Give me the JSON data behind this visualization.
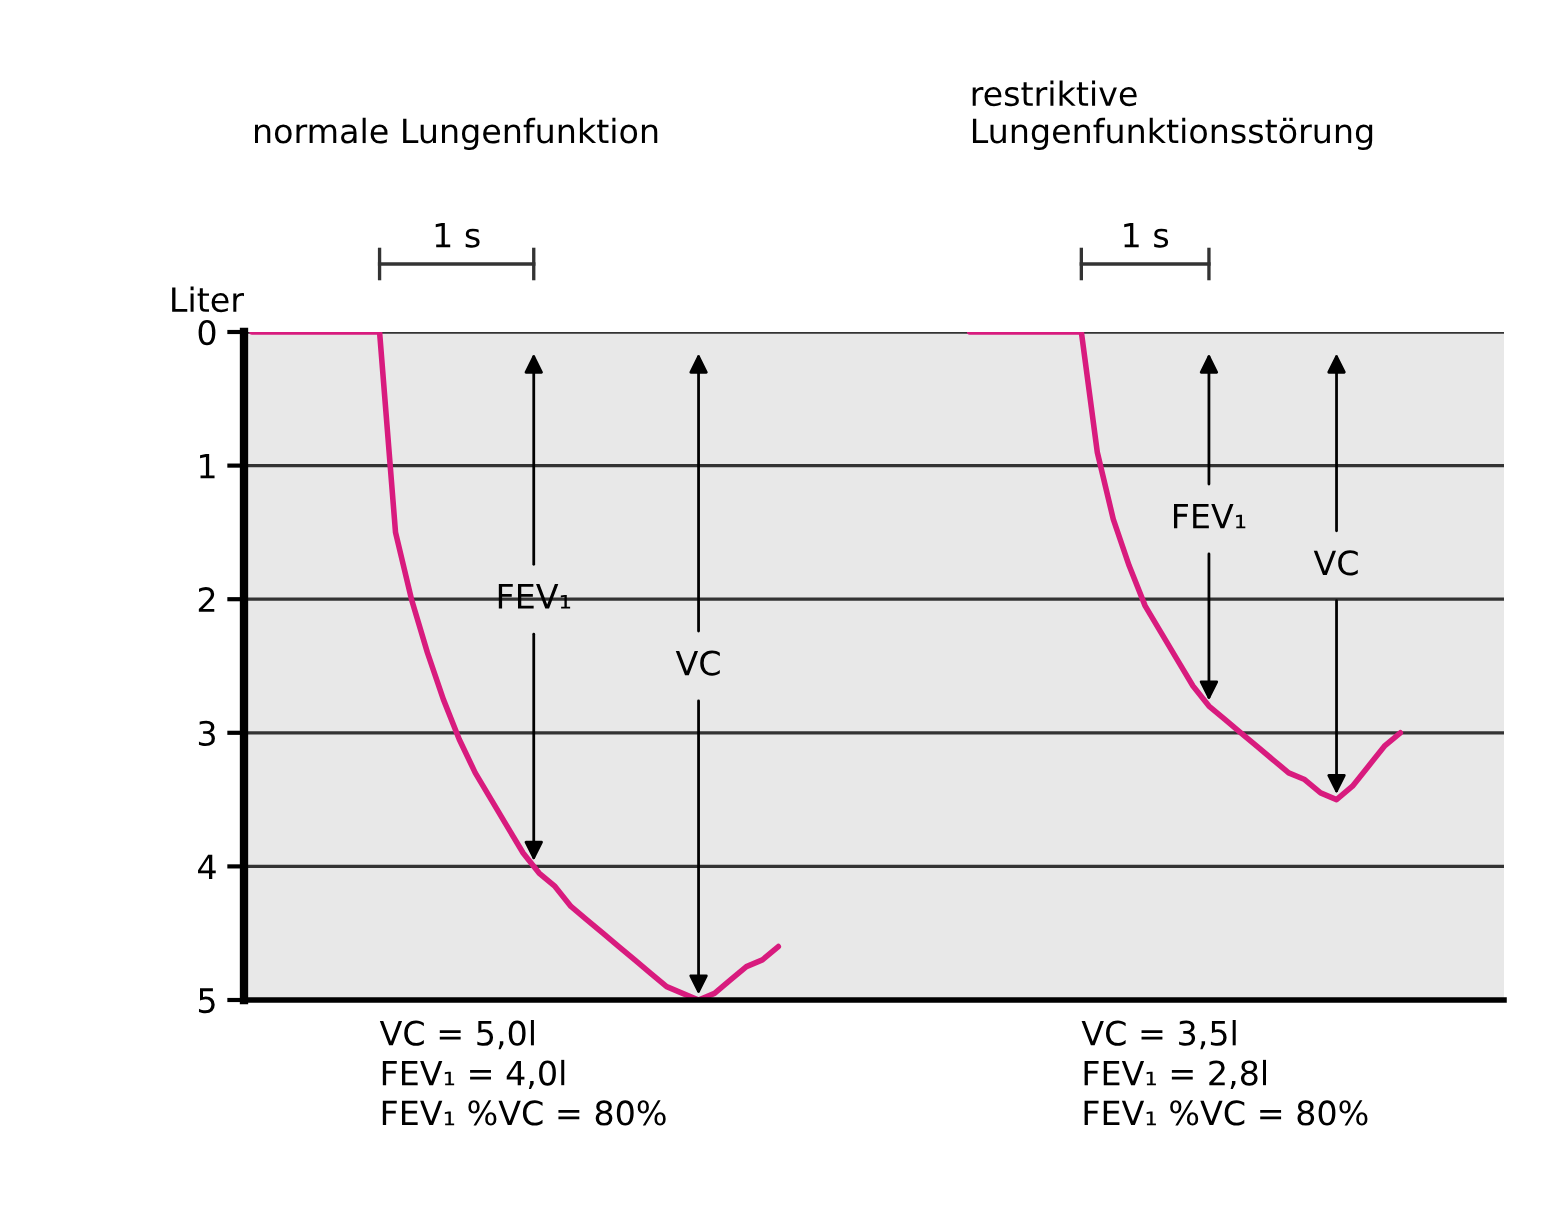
{
  "chart_data": {
    "type": "line",
    "ylabel": "Liter",
    "categories": [
      null,
      null,
      null,
      null,
      null,
      null,
      null,
      null,
      null,
      null,
      null,
      null,
      null,
      null,
      null,
      null,
      null,
      null,
      null,
      null,
      null,
      null,
      null,
      null,
      null,
      null,
      null,
      null,
      null,
      null,
      null,
      null,
      null,
      null,
      null,
      null,
      null,
      null,
      null,
      null,
      null,
      null,
      null,
      null,
      null,
      null,
      null,
      null,
      null,
      null,
      null,
      null,
      null,
      null,
      null,
      null,
      null,
      null,
      null,
      null,
      null,
      null,
      null,
      null,
      null,
      null,
      null,
      null,
      null,
      null,
      null,
      null,
      null,
      null,
      null,
      null,
      null,
      null,
      null
    ],
    "series": [
      {
        "color": "#d81b7e",
        "values": [
          0,
          0,
          0,
          0,
          0,
          0,
          0,
          0,
          0,
          1.5,
          2.0,
          2.4,
          2.75,
          3.05,
          3.3,
          3.5,
          3.7,
          3.9,
          4.05,
          4.15,
          4.3,
          4.4,
          4.5,
          4.6,
          4.7,
          4.8,
          4.9,
          4.95,
          5.0,
          4.95,
          4.85,
          4.75,
          4.7,
          4.6,
          null,
          null,
          null,
          null,
          null,
          null,
          null,
          null,
          null,
          null,
          null,
          0,
          0,
          0,
          0,
          0,
          0,
          0,
          0,
          0.9,
          1.4,
          1.75,
          2.05,
          2.25,
          2.45,
          2.65,
          2.8,
          2.9,
          3.0,
          3.1,
          3.2,
          3.3,
          3.35,
          3.45,
          3.5,
          3.4,
          3.25,
          3.1,
          3.0,
          null,
          null,
          null,
          null,
          null,
          null
        ]
      }
    ],
    "ylim": [
      5,
      0
    ],
    "yticks": [
      0,
      1,
      2,
      3,
      4,
      5
    ],
    "tick_labels": "y",
    "grid": "y",
    "annotations": [
      "normale Lungenfunktion",
      "restriktive\nLungenfunktionsstörung",
      "1 s",
      "1 s",
      {
        "text": "FEV₁",
        "y": 4.0
      },
      {
        "text": "VC",
        "y": 5.0
      },
      {
        "text": "FEV₁",
        "y": 2.8
      },
      {
        "text": "VC",
        "y": 3.5
      },
      "VC = 5,0l\nFEV₁ = 4,0l\nFEV₁ %VC = 80%",
      "VC = 3,5l\nFEV₁ = 2,8l\nFEV₁ %VC = 80%"
    ]
  }
}
